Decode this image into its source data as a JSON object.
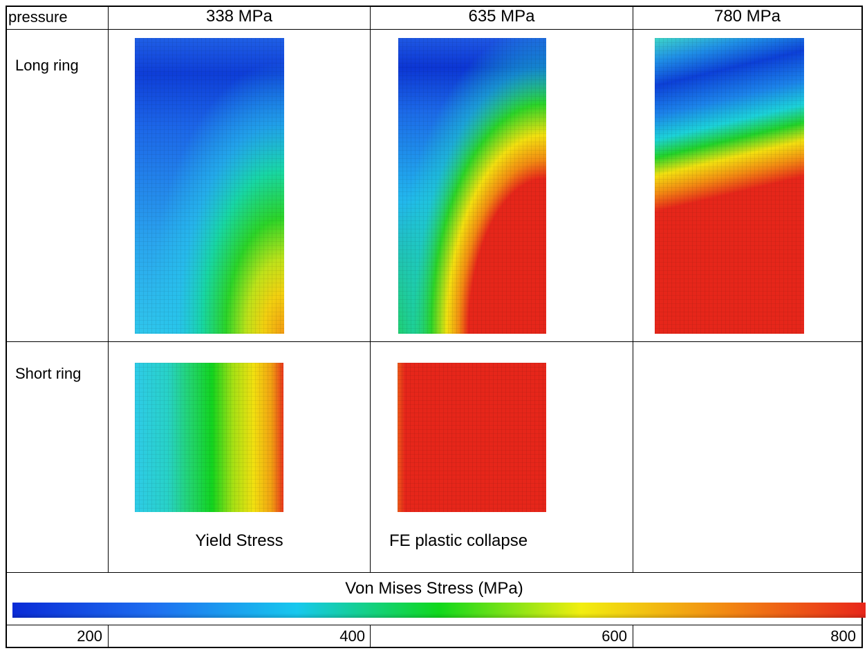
{
  "table": {
    "corner_label": "pressure",
    "pressure_columns": [
      "338 MPa",
      "635 MPa",
      "780 MPa"
    ],
    "rows": [
      {
        "label": "Long ring",
        "captions": [
          "",
          "",
          ""
        ]
      },
      {
        "label": "Short ring",
        "captions": [
          "Yield Stress",
          "FE plastic collapse",
          ""
        ]
      }
    ]
  },
  "colorbar": {
    "title": "Von Mises Stress (MPa)",
    "ticks": [
      "200",
      "400",
      "600",
      "800"
    ],
    "min": 200,
    "max": 800,
    "colors": [
      "#0a2bd6",
      "#1e6ff0",
      "#17c8ee",
      "#10d81c",
      "#f2ee10",
      "#f28a12",
      "#e8261a"
    ]
  },
  "contours": {
    "long_338": {
      "description": "stress field, long ring at 338 MPa",
      "levels": [
        215,
        240,
        270,
        310,
        360,
        420,
        480,
        560,
        640
      ]
    }
  }
}
